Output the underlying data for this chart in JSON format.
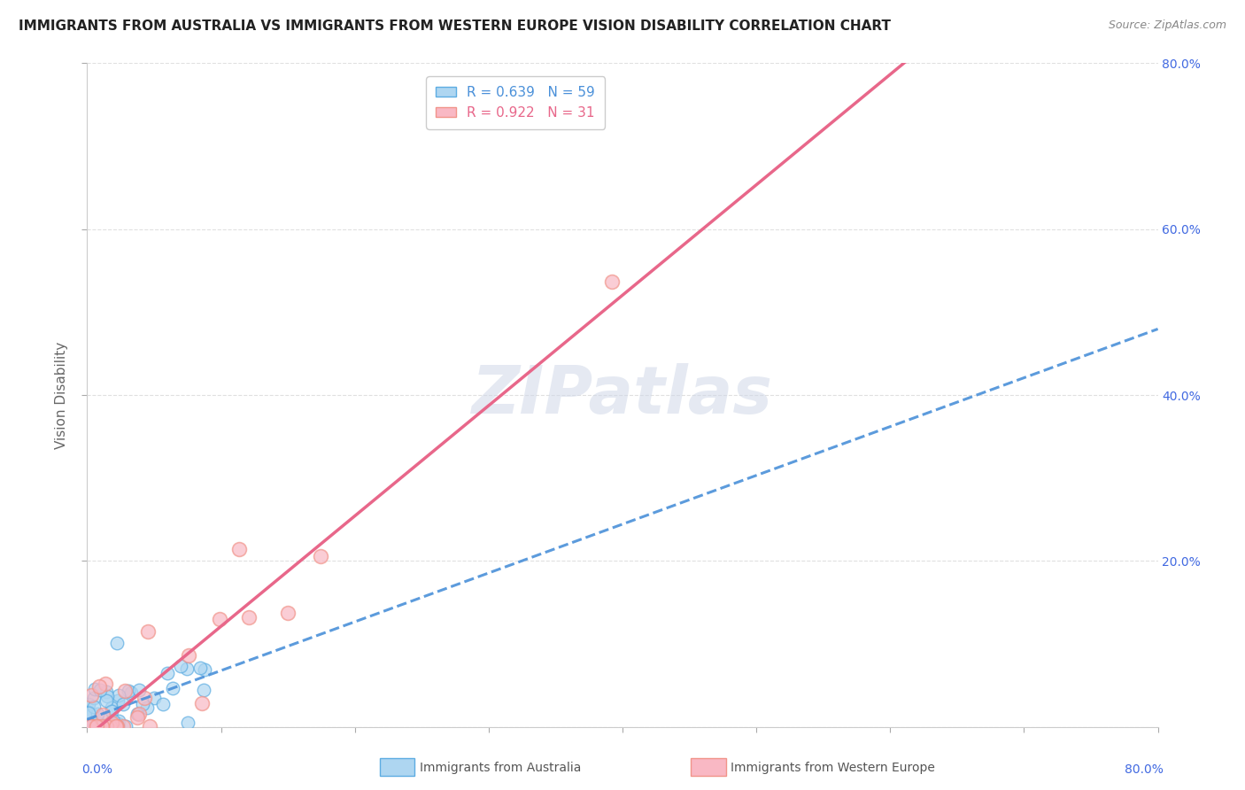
{
  "title": "IMMIGRANTS FROM AUSTRALIA VS IMMIGRANTS FROM WESTERN EUROPE VISION DISABILITY CORRELATION CHART",
  "source": "Source: ZipAtlas.com",
  "ylabel": "Vision Disability",
  "R_australia": 0.639,
  "N_australia": 59,
  "R_europe": 0.922,
  "N_europe": 31,
  "xmin": 0.0,
  "xmax": 0.8,
  "ymin": 0.0,
  "ymax": 0.8,
  "color_australia_fill": "#AED6F1",
  "color_australia_edge": "#5DADE2",
  "color_europe_fill": "#F9B8C4",
  "color_europe_edge": "#F1948A",
  "color_line_australia": "#4A90D9",
  "color_line_europe": "#E8678A",
  "background_color": "#FFFFFF",
  "watermark": "ZIPatlas",
  "grid_color": "#CCCCCC",
  "title_fontsize": 11,
  "source_fontsize": 9,
  "aus_line_slope": 0.52,
  "aus_line_intercept": 0.005,
  "eur_line_slope": 1.35,
  "eur_line_intercept": -0.02,
  "right_ytick_labels": [
    "20.0%",
    "40.0%",
    "60.0%",
    "80.0%"
  ],
  "right_ytick_values": [
    0.2,
    0.4,
    0.6,
    0.8
  ],
  "bottom_xtick_label_left": "0.0%",
  "bottom_xtick_label_right": "80.0%"
}
